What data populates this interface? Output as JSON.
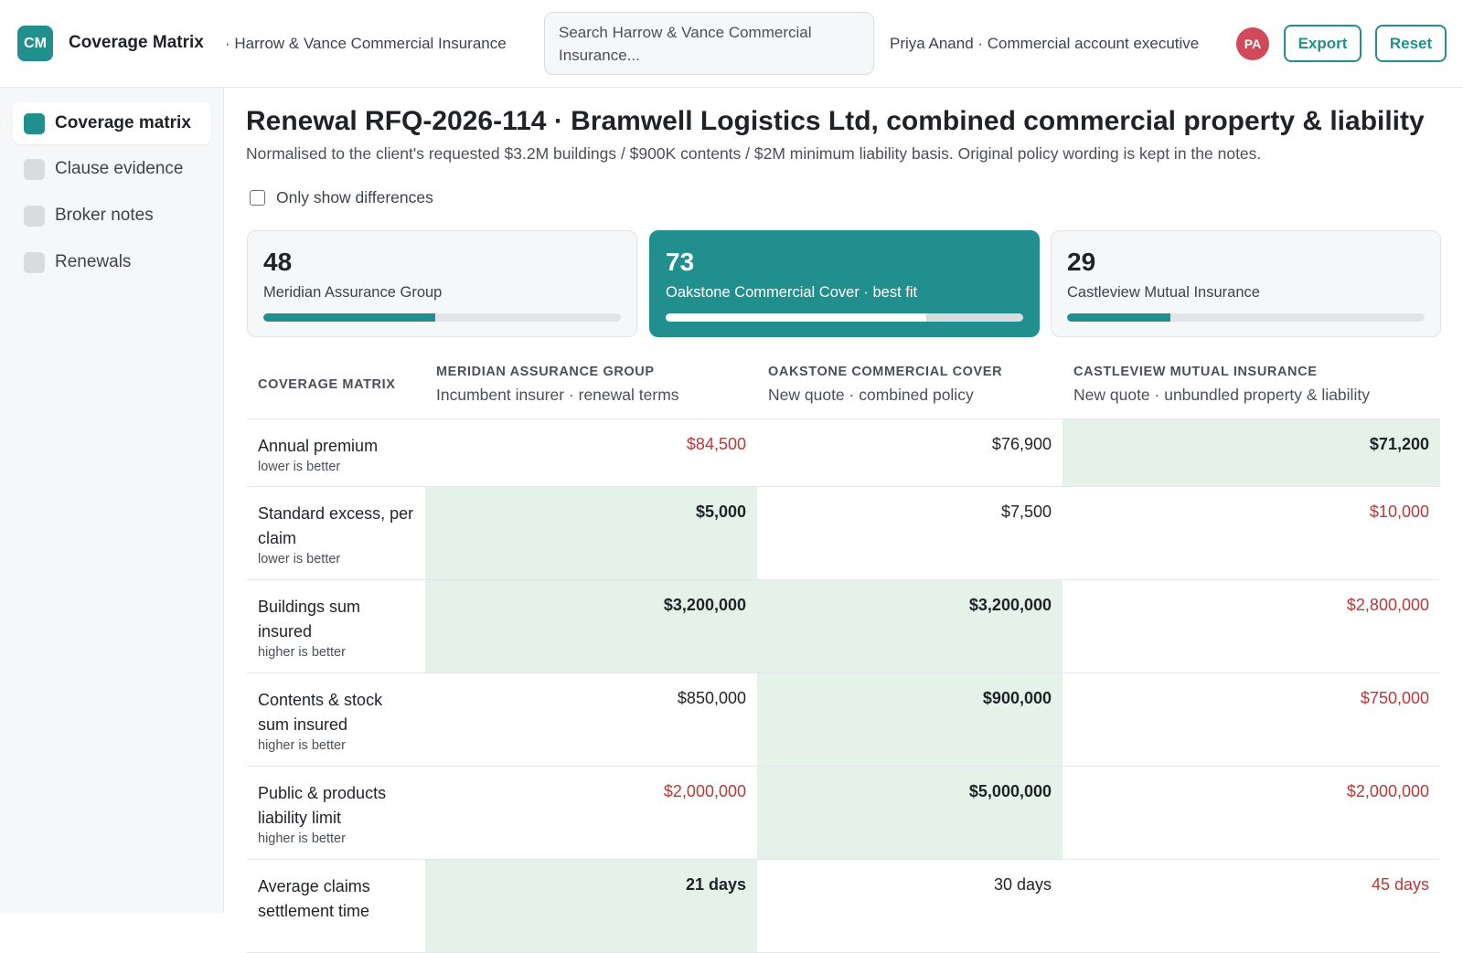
{
  "header": {
    "logo": "CM",
    "app_title": "Coverage Matrix",
    "org": "· Harrow & Vance Commercial Insurance",
    "search_placeholder": "Search Harrow & Vance Commercial Insurance...",
    "user": "Priya Anand · Commercial account executive",
    "avatar": "PA",
    "export_label": "Export",
    "reset_label": "Reset"
  },
  "sidebar": {
    "items": [
      {
        "label": "Coverage matrix",
        "active": true
      },
      {
        "label": "Clause evidence",
        "active": false
      },
      {
        "label": "Broker notes",
        "active": false
      },
      {
        "label": "Renewals",
        "active": false
      }
    ]
  },
  "page": {
    "title": "Renewal RFQ-2026-114 · Bramwell Logistics Ltd, combined commercial property & liability",
    "subtitle": "Normalised to the client's requested $3.2M buildings / $900K contents / $2M minimum liability basis. Original policy wording is kept in the notes.",
    "diff_toggle": "Only show differences"
  },
  "cards": [
    {
      "score": "48",
      "name": "Meridian Assurance Group",
      "progress": 0.48,
      "best": false
    },
    {
      "score": "73",
      "name": "Oakstone Commercial Cover · best fit",
      "progress": 0.73,
      "best": true
    },
    {
      "score": "29",
      "name": "Castleview Mutual Insurance",
      "progress": 0.29,
      "best": false
    }
  ],
  "matrix": {
    "corner": "COVERAGE MATRIX",
    "columns": [
      {
        "name": "MERIDIAN ASSURANCE GROUP",
        "desc": "Incumbent insurer · renewal terms"
      },
      {
        "name": "OAKSTONE COMMERCIAL COVER",
        "desc": "New quote · combined policy"
      },
      {
        "name": "CASTLEVIEW MUTUAL INSURANCE",
        "desc": "New quote · unbundled property & liability"
      }
    ],
    "rows": [
      {
        "label": "Annual premium",
        "hint": "lower is better",
        "values": [
          "$84,500",
          "$76,900",
          "$71,200"
        ],
        "status": [
          "worst",
          "",
          "best"
        ]
      },
      {
        "label": "Standard excess, per claim",
        "hint": "lower is better",
        "values": [
          "$5,000",
          "$7,500",
          "$10,000"
        ],
        "status": [
          "best",
          "",
          "worst"
        ]
      },
      {
        "label": "Buildings sum insured",
        "hint": "higher is better",
        "values": [
          "$3,200,000",
          "$3,200,000",
          "$2,800,000"
        ],
        "status": [
          "best",
          "best",
          "worst"
        ]
      },
      {
        "label": "Contents & stock sum insured",
        "hint": "higher is better",
        "values": [
          "$850,000",
          "$900,000",
          "$750,000"
        ],
        "status": [
          "",
          "best",
          "worst"
        ]
      },
      {
        "label": "Public & products liability limit",
        "hint": "higher is better",
        "values": [
          "$2,000,000",
          "$5,000,000",
          "$2,000,000"
        ],
        "status": [
          "worst",
          "best",
          "worst"
        ]
      },
      {
        "label": "Average claims settlement time",
        "hint": "",
        "values": [
          "21 days",
          "30 days",
          "45 days"
        ],
        "status": [
          "best",
          "",
          "worst"
        ]
      }
    ]
  }
}
